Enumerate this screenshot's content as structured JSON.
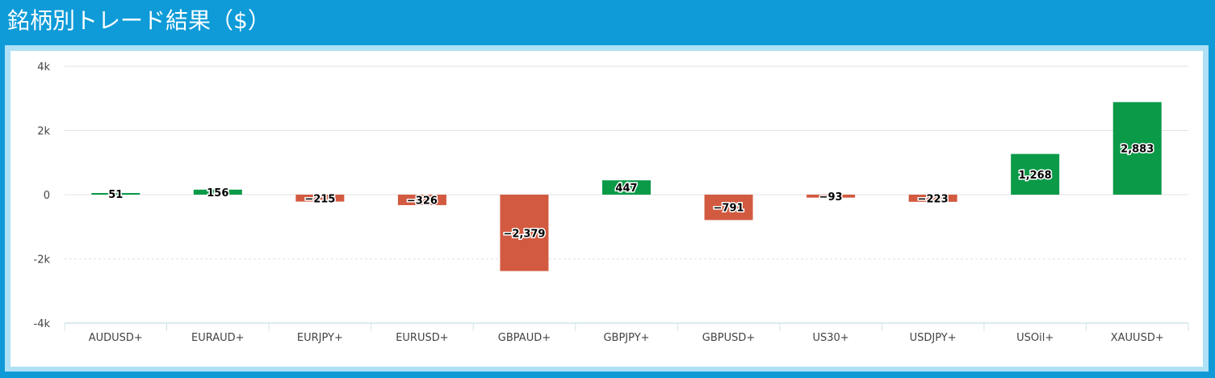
{
  "header": {
    "title": "銘柄別トレード結果（$）"
  },
  "colors": {
    "positive": "#0a9a48",
    "negative": "#d25a40",
    "header": "#0e9bd8",
    "grid": "#e3e3e3"
  },
  "chart_data": {
    "type": "bar",
    "title": "銘柄別トレード結果（$）",
    "xlabel": "",
    "ylabel": "",
    "ylim": [
      -4000,
      4000
    ],
    "yticks": [
      4000,
      2000,
      0,
      -2000,
      -4000
    ],
    "ytick_labels": [
      "4k",
      "2k",
      "0",
      "-2k",
      "-4k"
    ],
    "grid": true,
    "legend": "none",
    "categories": [
      "AUDUSD+",
      "EURAUD+",
      "EURJPY+",
      "EURUSD+",
      "GBPAUD+",
      "GBPJPY+",
      "GBPUSD+",
      "US30+",
      "USDJPY+",
      "USOil+",
      "XAUUSD+"
    ],
    "values": [
      51,
      156,
      -215,
      -326,
      -2379,
      447,
      -791,
      -93,
      -223,
      1268,
      2883
    ],
    "value_labels": [
      "51",
      "156",
      "−215",
      "−326",
      "−2,379",
      "447",
      "−791",
      "−93",
      "−223",
      "1,268",
      "2,883"
    ]
  }
}
